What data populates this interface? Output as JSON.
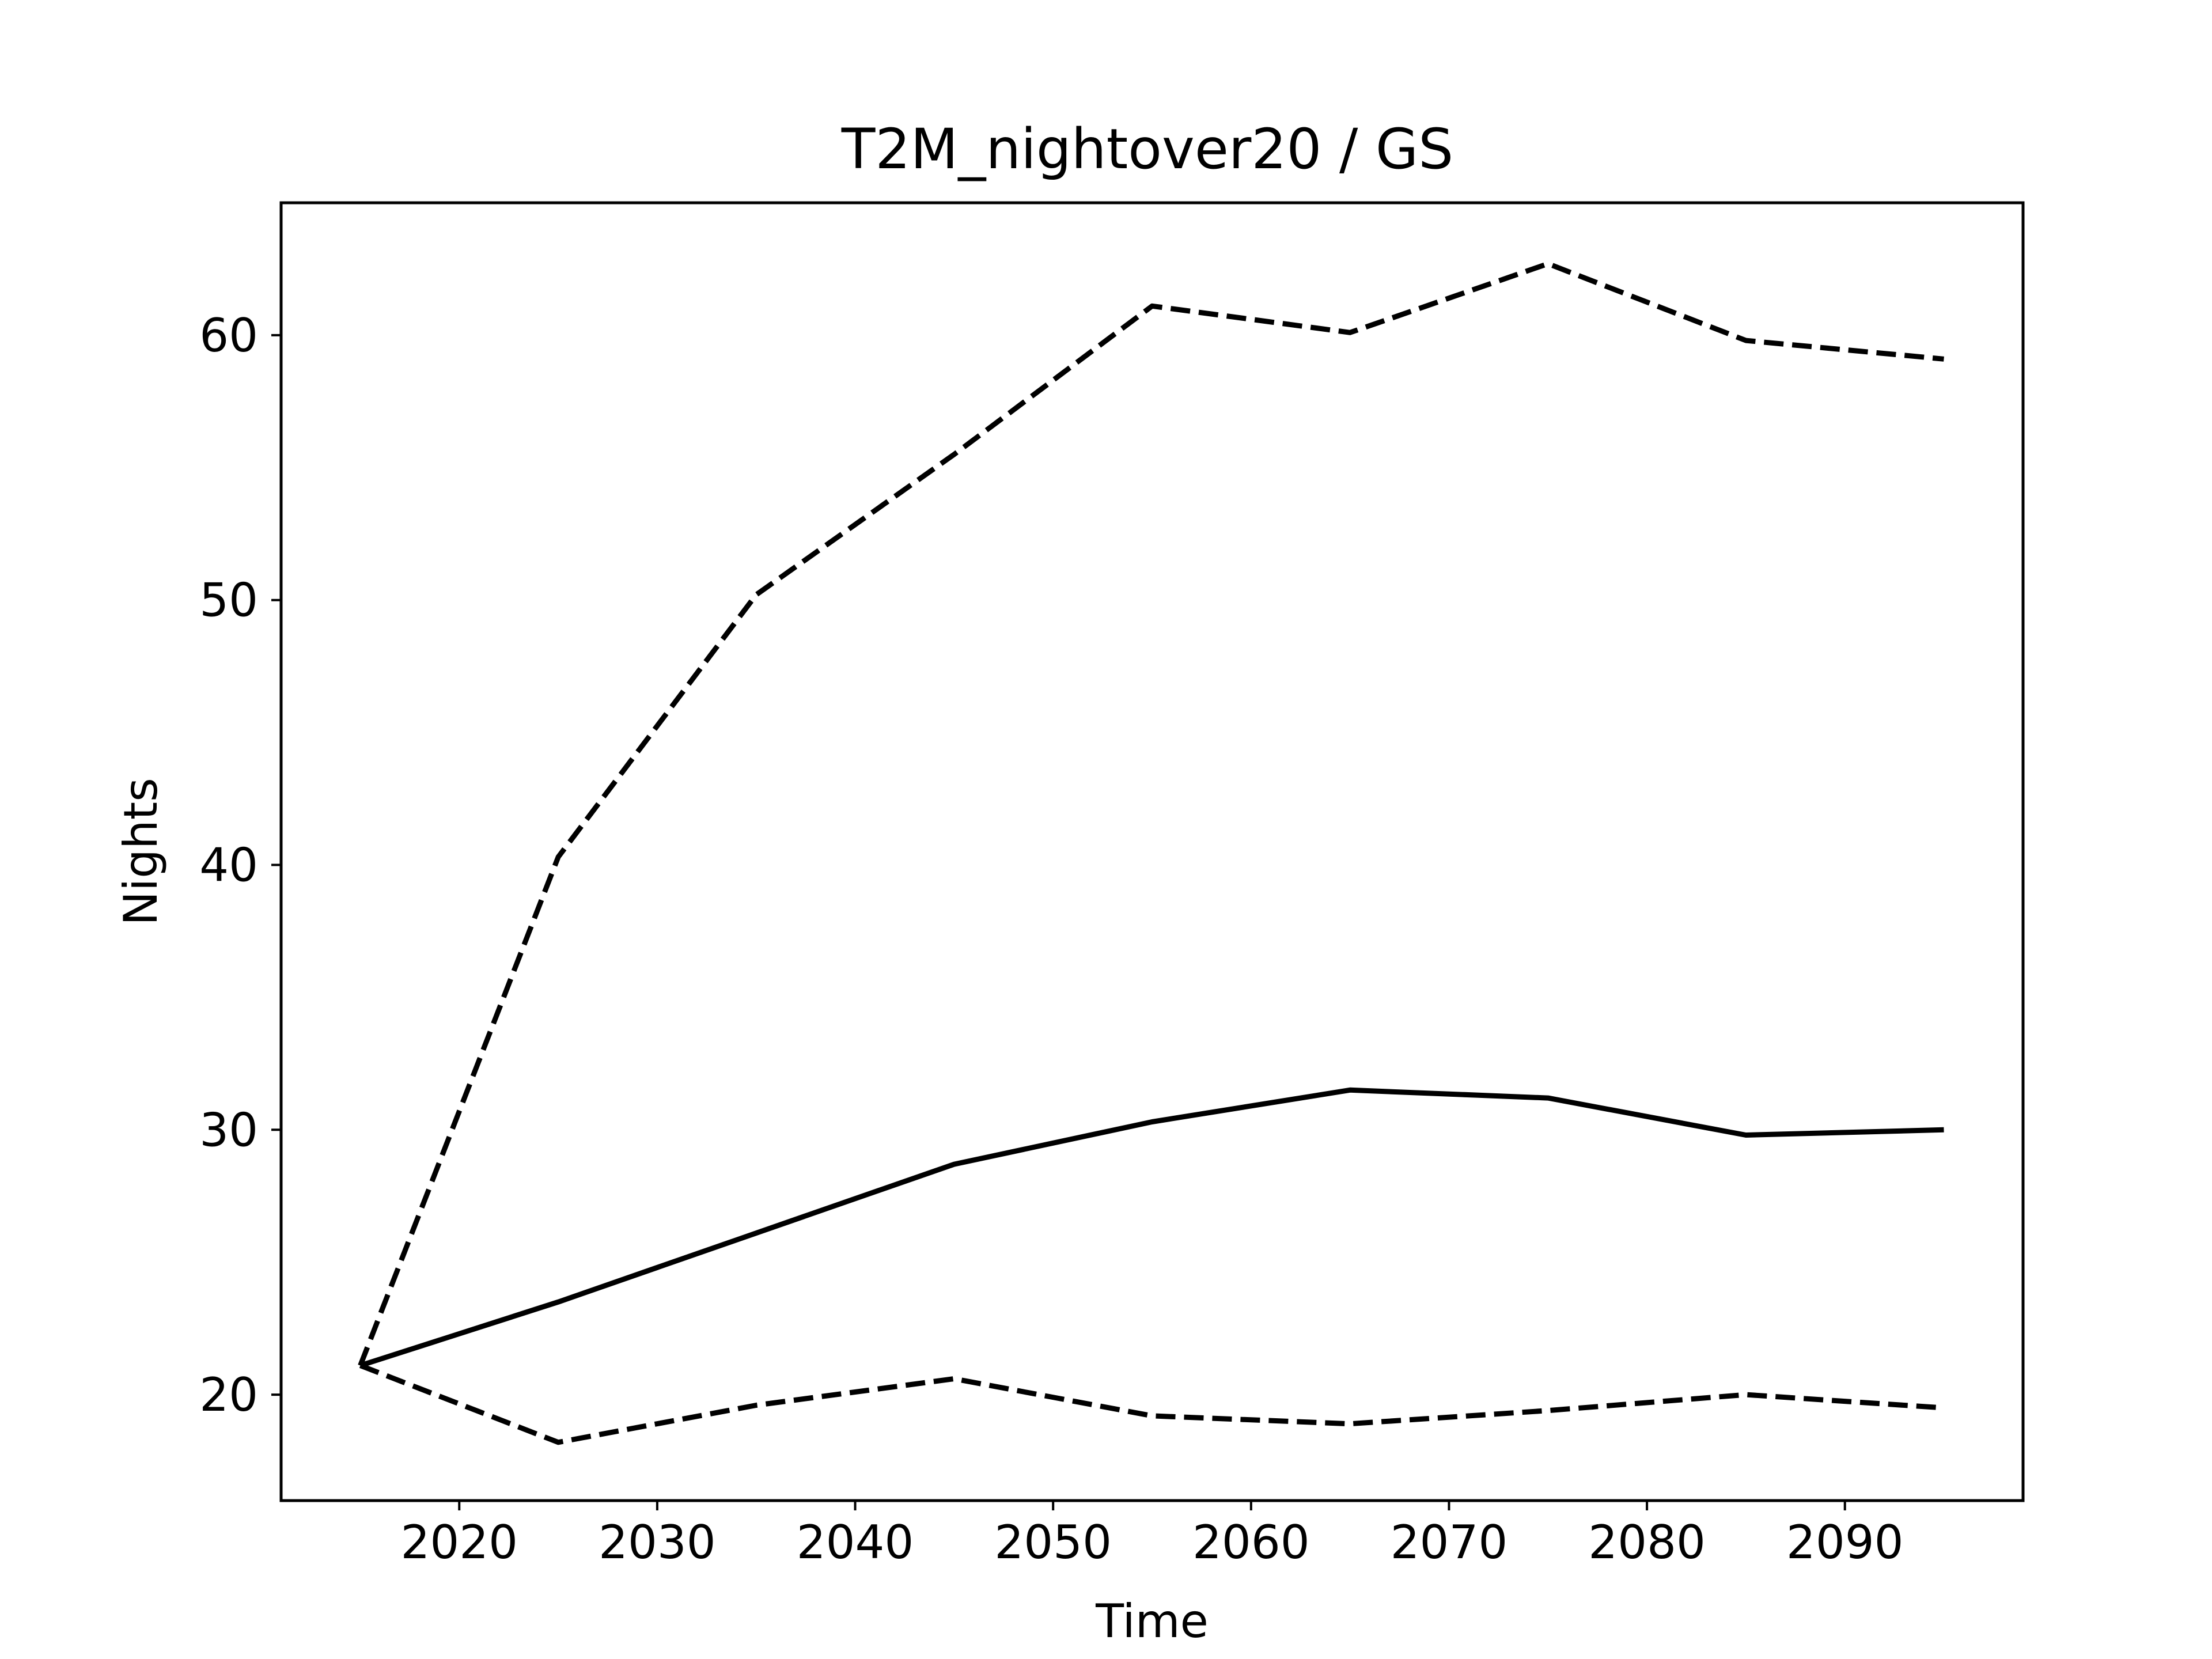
{
  "chart_data": {
    "type": "line",
    "title": "T2M_nightover20 / GS",
    "xlabel": "Time",
    "ylabel": "Nights",
    "xlim": [
      2011,
      2099
    ],
    "ylim": [
      16,
      65
    ],
    "xticks": [
      2020,
      2030,
      2040,
      2050,
      2060,
      2070,
      2080,
      2090
    ],
    "yticks": [
      20,
      30,
      40,
      50,
      60
    ],
    "grid": false,
    "legend": "none",
    "x": [
      2015,
      2025,
      2035,
      2045,
      2055,
      2065,
      2075,
      2085,
      2095
    ],
    "series": [
      {
        "style": "solid",
        "color": "#000000",
        "values": [
          21.1,
          23.5,
          26.1,
          28.7,
          30.3,
          31.5,
          31.2,
          29.8,
          30.0
        ]
      },
      {
        "style": "dashed",
        "color": "#000000",
        "values": [
          21.1,
          40.3,
          50.2,
          55.5,
          61.1,
          60.1,
          62.7,
          59.8,
          59.1
        ]
      },
      {
        "style": "dashed",
        "color": "#000000",
        "values": [
          21.1,
          18.2,
          19.6,
          20.6,
          19.2,
          18.9,
          19.4,
          20.0,
          19.5
        ]
      }
    ]
  }
}
